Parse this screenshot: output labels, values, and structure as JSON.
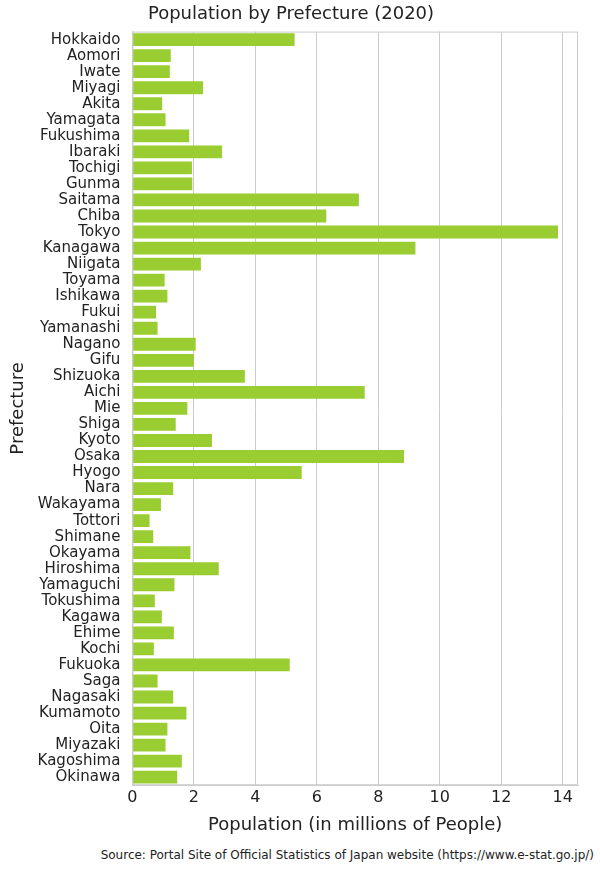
{
  "chart_data": {
    "type": "bar",
    "orientation": "horizontal",
    "title": "Population by Prefecture (2020)",
    "xlabel": "Population (in millions of People)",
    "ylabel": "Prefecture",
    "source": "Source: Portal Site of Official Statistics of Japan website (https://www.e-stat.go.jp/)",
    "categories": [
      "Hokkaido",
      "Aomori",
      "Iwate",
      "Miyagi",
      "Akita",
      "Yamagata",
      "Fukushima",
      "Ibaraki",
      "Tochigi",
      "Gunma",
      "Saitama",
      "Chiba",
      "Tokyo",
      "Kanagawa",
      "Niigata",
      "Toyama",
      "Ishikawa",
      "Fukui",
      "Yamanashi",
      "Nagano",
      "Gifu",
      "Shizuoka",
      "Aichi",
      "Mie",
      "Shiga",
      "Kyoto",
      "Osaka",
      "Hyogo",
      "Nara",
      "Wakayama",
      "Tottori",
      "Shimane",
      "Okayama",
      "Hiroshima",
      "Yamaguchi",
      "Tokushima",
      "Kagawa",
      "Ehime",
      "Kochi",
      "Fukuoka",
      "Saga",
      "Nagasaki",
      "Kumamoto",
      "Oita",
      "Miyazaki",
      "Kagoshima",
      "Okinawa"
    ],
    "values": [
      5.28,
      1.25,
      1.22,
      2.3,
      0.97,
      1.08,
      1.85,
      2.92,
      1.94,
      1.95,
      7.37,
      6.31,
      13.85,
      9.21,
      2.23,
      1.05,
      1.14,
      0.77,
      0.82,
      2.06,
      2.0,
      3.66,
      7.56,
      1.79,
      1.41,
      2.59,
      8.84,
      5.51,
      1.33,
      0.93,
      0.56,
      0.68,
      1.89,
      2.81,
      1.37,
      0.73,
      0.96,
      1.35,
      0.7,
      5.12,
      0.82,
      1.33,
      1.76,
      1.14,
      1.08,
      1.61,
      1.46
    ],
    "color": "#9acd32",
    "xlim": [
      0,
      14.5
    ],
    "xticks": [
      0,
      2,
      4,
      6,
      8,
      10,
      12,
      14
    ],
    "grid": true
  }
}
